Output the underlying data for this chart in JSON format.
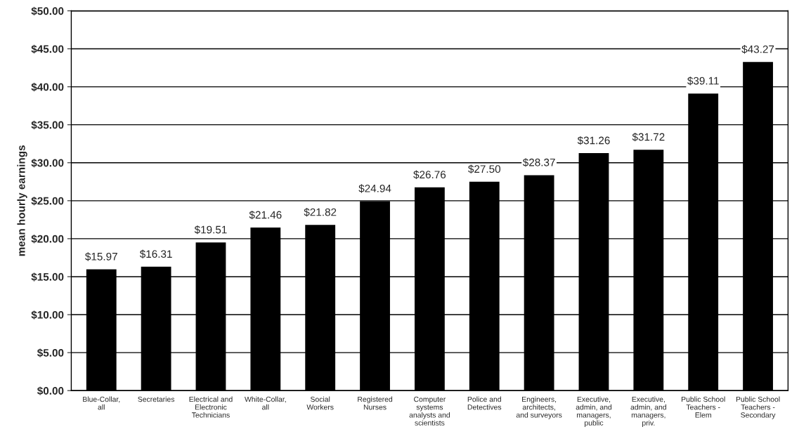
{
  "chart_data": {
    "type": "bar",
    "ylabel": "mean hourly earnings",
    "categories": [
      "Blue-Collar,\nall",
      "Secretaries",
      "Electrical and\nElectronic\nTechnicians",
      "White-Collar,\nall",
      "Social\nWorkers",
      "Registered\nNurses",
      "Computer\nsystems\nanalysts and\nscientists",
      "Police and\nDetectives",
      "Engineers,\narchitects,\nand surveyors",
      "Executive,\nadmin, and\nmanagers,\npublic",
      "Executive,\nadmin, and\nmanagers,\npriv.",
      "Public School\nTeachers -\nElem",
      "Public School\nTeachers -\nSecondary"
    ],
    "values": [
      15.97,
      16.31,
      19.51,
      21.46,
      21.82,
      24.94,
      26.76,
      27.5,
      28.37,
      31.26,
      31.72,
      39.11,
      43.27
    ],
    "value_labels": [
      "$15.97",
      "$16.31",
      "$19.51",
      "$21.46",
      "$21.82",
      "$24.94",
      "$26.76",
      "$27.50",
      "$28.37",
      "$31.26",
      "$31.72",
      "$39.11",
      "$43.27"
    ],
    "color": "#000000",
    "ylim": [
      0,
      50
    ],
    "yticks": [
      {
        "value": 0,
        "label": "$0.00"
      },
      {
        "value": 5,
        "label": "$5.00"
      },
      {
        "value": 10,
        "label": "$10.00"
      },
      {
        "value": 15,
        "label": "$15.00"
      },
      {
        "value": 20,
        "label": "$20.00"
      },
      {
        "value": 25,
        "label": "$25.00"
      },
      {
        "value": 30,
        "label": "$30.00"
      },
      {
        "value": 35,
        "label": "$35.00"
      },
      {
        "value": 40,
        "label": "$40.00"
      },
      {
        "value": 45,
        "label": "$45.00"
      },
      {
        "value": 50,
        "label": "$50.00"
      }
    ],
    "grid": "y"
  }
}
